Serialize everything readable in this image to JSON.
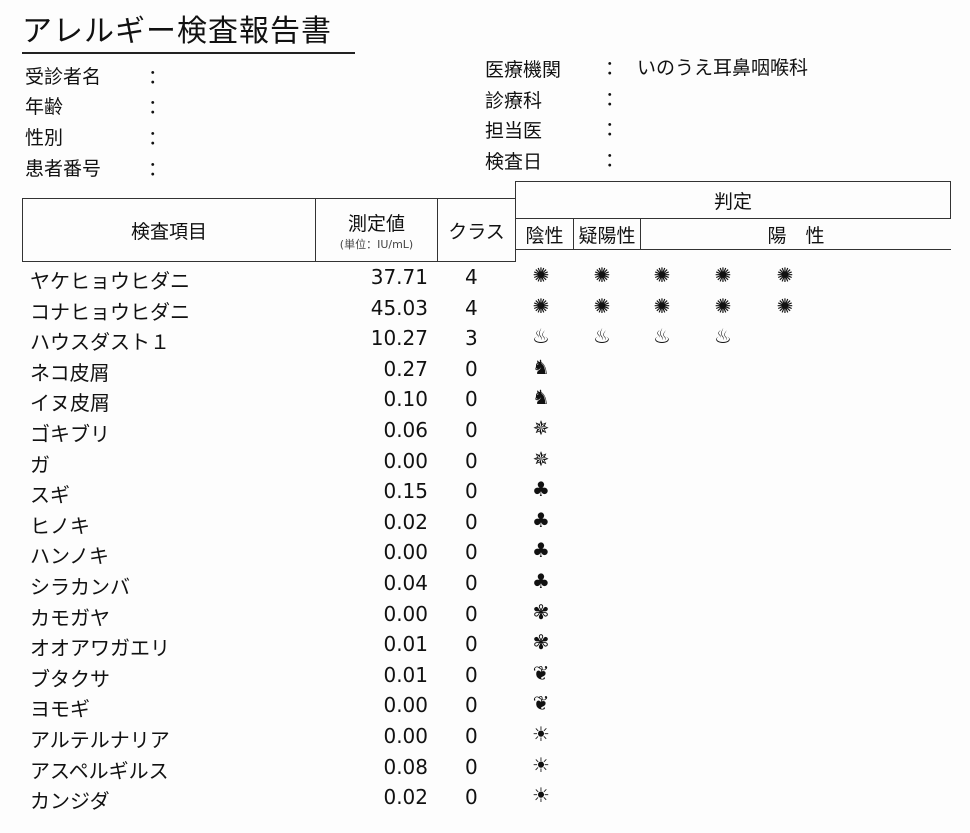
{
  "title": "アレルギー検査報告書",
  "patient": {
    "name_label": "受診者名",
    "age_label": "年齢",
    "sex_label": "性別",
    "id_label": "患者番号",
    "colon": "："
  },
  "clinic": {
    "institution_label": "医療機関",
    "institution_value": "いのうえ耳鼻咽喉科",
    "department_label": "診療科",
    "doctor_label": "担当医",
    "date_label": "検査日"
  },
  "table": {
    "headers": {
      "item": "検査項目",
      "value": "測定値",
      "unit": "(単位：IU/mL)",
      "class": "クラス",
      "judgement": "判定",
      "negative": "陰性",
      "borderline": "疑陽性",
      "positive": "陽　性"
    },
    "rows": [
      {
        "name": "ヤケヒョウヒダニ",
        "value": "37.71",
        "class": "4",
        "icon": "mite-icon",
        "count": 5
      },
      {
        "name": "コナヒョウヒダニ",
        "value": "45.03",
        "class": "4",
        "icon": "mite-icon",
        "count": 5
      },
      {
        "name": "ハウスダスト１",
        "value": "10.27",
        "class": "3",
        "icon": "house-dust-icon",
        "count": 4
      },
      {
        "name": "ネコ皮屑",
        "value": "0.27",
        "class": "0",
        "icon": "dog-icon",
        "count": 1
      },
      {
        "name": "イヌ皮屑",
        "value": "0.10",
        "class": "0",
        "icon": "dog-icon",
        "count": 1
      },
      {
        "name": "ゴキブリ",
        "value": "0.06",
        "class": "0",
        "icon": "insect-icon",
        "count": 1
      },
      {
        "name": "ガ",
        "value": "0.00",
        "class": "0",
        "icon": "insect-icon",
        "count": 1
      },
      {
        "name": "スギ",
        "value": "0.15",
        "class": "0",
        "icon": "tree-icon",
        "count": 1
      },
      {
        "name": "ヒノキ",
        "value": "0.02",
        "class": "0",
        "icon": "tree-icon",
        "count": 1
      },
      {
        "name": "ハンノキ",
        "value": "0.00",
        "class": "0",
        "icon": "tree-icon",
        "count": 1
      },
      {
        "name": "シラカンバ",
        "value": "0.04",
        "class": "0",
        "icon": "tree-icon",
        "count": 1
      },
      {
        "name": "カモガヤ",
        "value": "0.00",
        "class": "0",
        "icon": "grass-icon",
        "count": 1
      },
      {
        "name": "オオアワガエリ",
        "value": "0.01",
        "class": "0",
        "icon": "grass-icon",
        "count": 1
      },
      {
        "name": "ブタクサ",
        "value": "0.01",
        "class": "0",
        "icon": "weed-leaf-icon",
        "count": 1
      },
      {
        "name": "ヨモギ",
        "value": "0.00",
        "class": "0",
        "icon": "weed-leaf-icon",
        "count": 1
      },
      {
        "name": "アルテルナリア",
        "value": "0.00",
        "class": "0",
        "icon": "mold-germ-icon",
        "count": 1
      },
      {
        "name": "アスペルギルス",
        "value": "0.08",
        "class": "0",
        "icon": "mold-germ-icon",
        "count": 1
      },
      {
        "name": "カンジダ",
        "value": "0.02",
        "class": "0",
        "icon": "mold-germ-icon",
        "count": 1
      }
    ]
  },
  "icon_glyphs": {
    "mite-icon": "✺",
    "house-dust-icon": "♨",
    "dog-icon": "♞",
    "insect-icon": "✵",
    "tree-icon": "♣",
    "grass-icon": "✾",
    "weed-leaf-icon": "❦",
    "mold-germ-icon": "☀"
  }
}
